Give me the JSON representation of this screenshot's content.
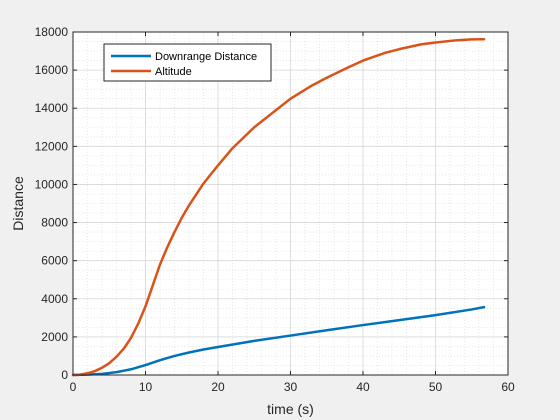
{
  "chart_data": {
    "type": "line",
    "title": "",
    "xlabel": "time (s)",
    "ylabel": "Distance",
    "xlim": [
      0,
      60
    ],
    "ylim": [
      0,
      18000
    ],
    "xticks": [
      0,
      10,
      20,
      30,
      40,
      50,
      60
    ],
    "yticks": [
      0,
      2000,
      4000,
      6000,
      8000,
      10000,
      12000,
      14000,
      16000,
      18000
    ],
    "grid": "on",
    "minor_grid": "on",
    "legend_location": "top-left",
    "series": [
      {
        "name": "Downrange Distance",
        "color": "#0072BD",
        "x": [
          0,
          2,
          4,
          6,
          8,
          10,
          12,
          14,
          16,
          18,
          20,
          25,
          30,
          35,
          40,
          45,
          50,
          55,
          56.7
        ],
        "y": [
          0,
          20,
          60,
          150,
          300,
          520,
          780,
          1000,
          1180,
          1340,
          1470,
          1790,
          2070,
          2350,
          2620,
          2880,
          3140,
          3440,
          3560
        ]
      },
      {
        "name": "Altitude",
        "color": "#D95319",
        "x": [
          0,
          1,
          2,
          3,
          4,
          5,
          6,
          7,
          8,
          9,
          10,
          11,
          12,
          13,
          14,
          15,
          16,
          18,
          20,
          22,
          25,
          28,
          30,
          33,
          35,
          38,
          40,
          43,
          45,
          48,
          50,
          53,
          55,
          56.7
        ],
        "y": [
          0,
          20,
          90,
          200,
          380,
          620,
          960,
          1380,
          1950,
          2700,
          3600,
          4700,
          5800,
          6700,
          7500,
          8250,
          8900,
          10050,
          11000,
          11900,
          13000,
          13900,
          14500,
          15200,
          15600,
          16150,
          16500,
          16900,
          17100,
          17350,
          17450,
          17570,
          17610,
          17620
        ]
      }
    ]
  }
}
